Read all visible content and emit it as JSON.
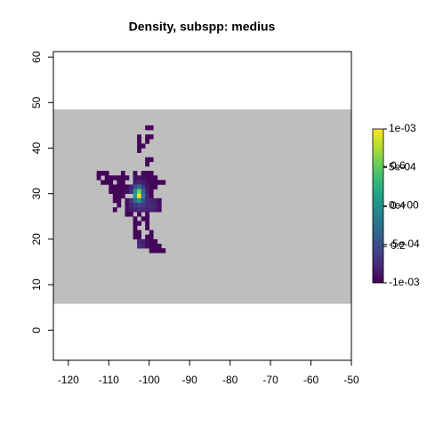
{
  "chart_data": {
    "type": "raster",
    "title": "Density, subspp: medius",
    "xlim": [
      -123.7,
      -50
    ],
    "ylim": [
      -6.6,
      61.2
    ],
    "xticks": [
      -120,
      -110,
      -100,
      -90,
      -80,
      -70,
      -60,
      -50
    ],
    "yticks": [
      0,
      10,
      20,
      30,
      40,
      50,
      60
    ],
    "background_band": {
      "ylim": [
        5.8,
        48.5
      ],
      "color": "#bebebe"
    },
    "cell_size": 1,
    "zlim": [
      0.018,
      0.787
    ],
    "cells": [
      [
        -101,
        44,
        0.03
      ],
      [
        -100,
        44,
        0.03
      ],
      [
        -103,
        42,
        0.03
      ],
      [
        -101,
        42,
        0.03
      ],
      [
        -100,
        42,
        0.03
      ],
      [
        -103,
        41,
        0.03
      ],
      [
        -101,
        41,
        0.03
      ],
      [
        -103,
        40,
        0.03
      ],
      [
        -102,
        40,
        0.03
      ],
      [
        -103,
        39,
        0.03
      ],
      [
        -101,
        37,
        0.03
      ],
      [
        -100,
        37,
        0.03
      ],
      [
        -101,
        36,
        0.03
      ],
      [
        -113,
        34,
        0.03
      ],
      [
        -112,
        34,
        0.03
      ],
      [
        -111,
        34,
        0.03
      ],
      [
        -107,
        34,
        0.03
      ],
      [
        -104,
        34,
        0.03
      ],
      [
        -102,
        34,
        0.03
      ],
      [
        -101,
        34,
        0.03
      ],
      [
        -100,
        34,
        0.03
      ],
      [
        -113,
        33,
        0.03
      ],
      [
        -111,
        33,
        0.03
      ],
      [
        -110,
        33,
        0.03
      ],
      [
        -109,
        33,
        0.03
      ],
      [
        -108,
        33,
        0.03
      ],
      [
        -107,
        33,
        0.03
      ],
      [
        -106,
        33,
        0.03
      ],
      [
        -104,
        33,
        0.05
      ],
      [
        -103,
        33,
        0.05
      ],
      [
        -102,
        33,
        0.05
      ],
      [
        -101,
        33,
        0.03
      ],
      [
        -100,
        33,
        0.03
      ],
      [
        -99,
        33,
        0.03
      ],
      [
        -112,
        32,
        0.03
      ],
      [
        -111,
        32,
        0.03
      ],
      [
        -110,
        32,
        0.03
      ],
      [
        -108,
        32,
        0.03
      ],
      [
        -107,
        32,
        0.03
      ],
      [
        -104,
        32,
        0.08
      ],
      [
        -103,
        32,
        0.1
      ],
      [
        -102,
        32,
        0.08
      ],
      [
        -101,
        32,
        0.05
      ],
      [
        -100,
        32,
        0.03
      ],
      [
        -99,
        32,
        0.03
      ],
      [
        -98,
        32,
        0.03
      ],
      [
        -97,
        32,
        0.03
      ],
      [
        -110,
        31,
        0.03
      ],
      [
        -109,
        31,
        0.03
      ],
      [
        -108,
        31,
        0.03
      ],
      [
        -107,
        31,
        0.03
      ],
      [
        -106,
        31,
        0.03
      ],
      [
        -105,
        31,
        0.08
      ],
      [
        -104,
        31,
        0.2
      ],
      [
        -103,
        31,
        0.3
      ],
      [
        -102,
        31,
        0.15
      ],
      [
        -101,
        31,
        0.06
      ],
      [
        -100,
        31,
        0.03
      ],
      [
        -99,
        31,
        0.03
      ],
      [
        -110,
        30,
        0.03
      ],
      [
        -109,
        30,
        0.03
      ],
      [
        -108,
        30,
        0.03
      ],
      [
        -107,
        30,
        0.03
      ],
      [
        -106,
        30,
        0.05
      ],
      [
        -105,
        30,
        0.12
      ],
      [
        -104,
        30,
        0.4
      ],
      [
        -103,
        30,
        0.62
      ],
      [
        -102,
        30,
        0.28
      ],
      [
        -101,
        30,
        0.08
      ],
      [
        -100,
        30,
        0.03
      ],
      [
        -109,
        29,
        0.03
      ],
      [
        -108,
        29,
        0.03
      ],
      [
        -107,
        29,
        0.03
      ],
      [
        -104,
        29,
        0.45
      ],
      [
        -103,
        29,
        0.78
      ],
      [
        -102,
        29,
        0.35
      ],
      [
        -101,
        29,
        0.1
      ],
      [
        -100,
        29,
        0.03
      ],
      [
        -109,
        28,
        0.03
      ],
      [
        -108,
        28,
        0.03
      ],
      [
        -106,
        28,
        0.05
      ],
      [
        -105,
        28,
        0.12
      ],
      [
        -104,
        28,
        0.28
      ],
      [
        -103,
        28,
        0.42
      ],
      [
        -102,
        28,
        0.22
      ],
      [
        -101,
        28,
        0.12
      ],
      [
        -100,
        28,
        0.1
      ],
      [
        -99,
        28,
        0.08
      ],
      [
        -98,
        28,
        0.05
      ],
      [
        -108,
        27,
        0.03
      ],
      [
        -106,
        27,
        0.05
      ],
      [
        -105,
        27,
        0.1
      ],
      [
        -104,
        27,
        0.15
      ],
      [
        -103,
        27,
        0.18
      ],
      [
        -102,
        27,
        0.15
      ],
      [
        -101,
        27,
        0.12
      ],
      [
        -100,
        27,
        0.12
      ],
      [
        -99,
        27,
        0.1
      ],
      [
        -98,
        27,
        0.05
      ],
      [
        -109,
        26,
        0.03
      ],
      [
        -106,
        26,
        0.05
      ],
      [
        -105,
        26,
        0.08
      ],
      [
        -104,
        26,
        0.1
      ],
      [
        -103,
        26,
        0.12
      ],
      [
        -102,
        26,
        0.1
      ],
      [
        -101,
        26,
        0.1
      ],
      [
        -100,
        26,
        0.1
      ],
      [
        -99,
        26,
        0.08
      ],
      [
        -98,
        26,
        0.05
      ],
      [
        -106,
        25,
        0.03
      ],
      [
        -105,
        25,
        0.03
      ],
      [
        -103,
        25,
        0.03
      ],
      [
        -101,
        25,
        0.03
      ],
      [
        -104,
        24,
        0.03
      ],
      [
        -102,
        24,
        0.03
      ],
      [
        -101,
        24,
        0.03
      ],
      [
        -104,
        23,
        0.03
      ],
      [
        -103,
        23,
        0.03
      ],
      [
        -101,
        23,
        0.03
      ],
      [
        -104,
        22,
        0.03
      ],
      [
        -101,
        22,
        0.03
      ],
      [
        -104,
        21,
        0.03
      ],
      [
        -103,
        21,
        0.03
      ],
      [
        -100,
        21,
        0.03
      ],
      [
        -104,
        20,
        0.03
      ],
      [
        -103,
        20,
        0.03
      ],
      [
        -101,
        20,
        0.03
      ],
      [
        -100,
        20,
        0.03
      ],
      [
        -103,
        19,
        0.1
      ],
      [
        -102,
        19,
        0.08
      ],
      [
        -101,
        19,
        0.05
      ],
      [
        -100,
        19,
        0.03
      ],
      [
        -99,
        19,
        0.03
      ],
      [
        -103,
        18,
        0.12
      ],
      [
        -102,
        18,
        0.1
      ],
      [
        -101,
        18,
        0.05
      ],
      [
        -100,
        18,
        0.03
      ],
      [
        -99,
        18,
        0.03
      ],
      [
        -98,
        18,
        0.03
      ],
      [
        -100,
        17,
        0.03
      ],
      [
        -99,
        17,
        0.03
      ],
      [
        -98,
        17,
        0.03
      ],
      [
        -97,
        17,
        0.03
      ]
    ],
    "colorbar": {
      "lim": [
        -0.001,
        0.001
      ],
      "ticks": [
        {
          "value": -0.001,
          "label": "-1e-03"
        },
        {
          "value": -0.0005,
          "label": "-5e-04"
        },
        {
          "value": 0,
          "label": "0e+00"
        },
        {
          "value": 0.0005,
          "label": "5e-04"
        },
        {
          "value": 0.001,
          "label": "1e-03"
        }
      ],
      "ticks2": [
        0.2,
        0.4,
        0.6
      ]
    }
  }
}
